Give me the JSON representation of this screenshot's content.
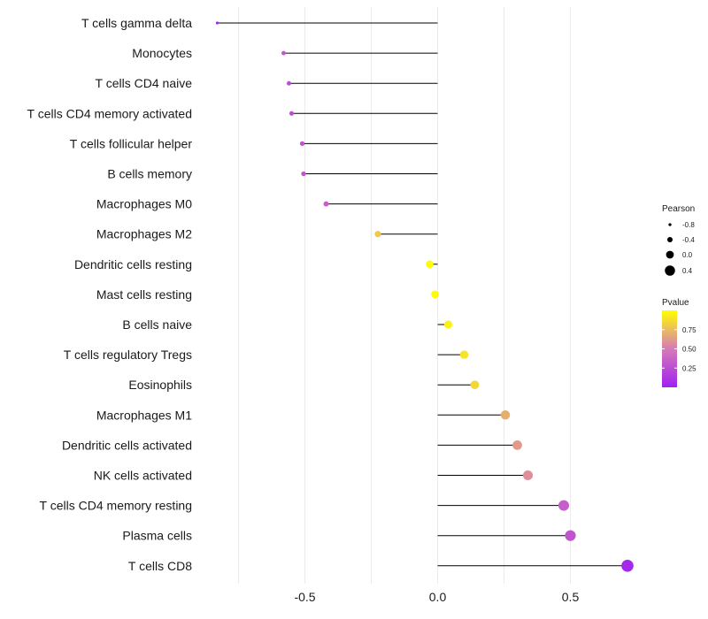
{
  "chart_data": {
    "type": "lollipop",
    "title": "",
    "xlabel": "",
    "ylabel": "",
    "xlim": [
      -0.9,
      0.73
    ],
    "xticks": [
      -0.5,
      0.0,
      0.5
    ],
    "xtick_labels": [
      "-0.5",
      "0.0",
      "0.5"
    ],
    "grid": true,
    "categories": [
      "T cells gamma delta",
      "Monocytes",
      "T cells CD4 naive",
      "T cells CD4 memory activated",
      "T cells follicular helper",
      "B cells memory",
      "Macrophages M0",
      "Macrophages M2",
      "Dendritic cells resting",
      "Mast cells resting",
      "B cells naive",
      "T cells regulatory  Tregs ",
      "Eosinophils",
      "Macrophages M1",
      "Dendritic cells activated",
      "NK cells activated",
      "T cells CD4 memory resting",
      "Plasma cells",
      "T cells CD8"
    ],
    "pearson": [
      -0.83,
      -0.58,
      -0.56,
      -0.55,
      -0.51,
      -0.505,
      -0.42,
      -0.225,
      -0.03,
      -0.01,
      0.04,
      0.1,
      0.14,
      0.255,
      0.3,
      0.34,
      0.475,
      0.5,
      0.715
    ],
    "pvalue": [
      0.02,
      0.3,
      0.25,
      0.25,
      0.3,
      0.3,
      0.35,
      0.8,
      0.99,
      0.98,
      0.95,
      0.9,
      0.85,
      0.7,
      0.62,
      0.58,
      0.35,
      0.3,
      0.05
    ],
    "size_legend": {
      "title": "Pearson",
      "values": [
        -0.8,
        -0.4,
        0.0,
        0.4
      ],
      "labels": [
        "-0.8",
        "-0.4",
        "0.0",
        "0.4"
      ]
    },
    "color_legend": {
      "title": "Pvalue",
      "range": [
        0.0,
        1.0
      ],
      "ticks": [
        0.25,
        0.5,
        0.75
      ],
      "labels": [
        "0.25",
        "0.50",
        "0.75"
      ],
      "low_color": "#a020f0",
      "mid_color": "#d67ab8",
      "high_color": "#ffff00"
    }
  }
}
